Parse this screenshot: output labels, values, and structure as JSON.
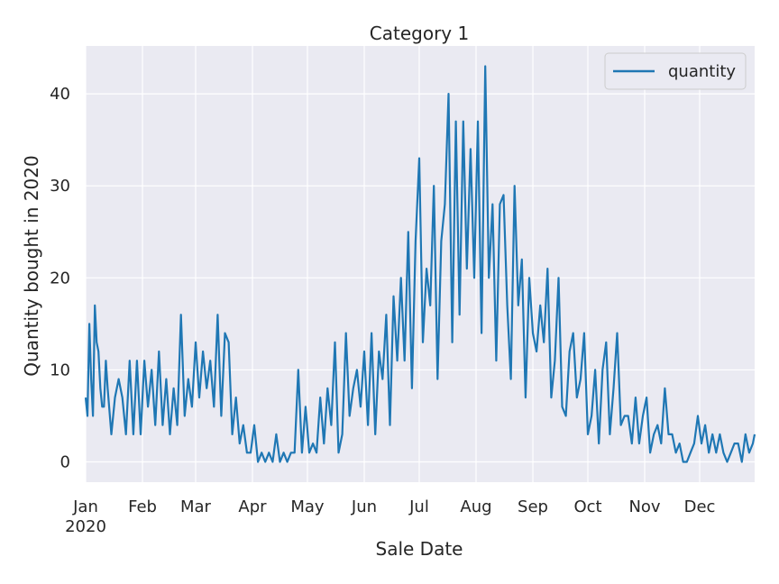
{
  "chart_data": {
    "type": "line",
    "title": "Category 1",
    "xlabel": "Sale Date",
    "ylabel": "Quantity bought in 2020",
    "ylim": [
      -2.2,
      45.2
    ],
    "xlim": [
      "2020-01-01",
      "2020-12-31"
    ],
    "grid": true,
    "legend_position": "top-right",
    "colors": {
      "background": "#eaeaf2",
      "grid": "#ffffff",
      "line": "#1f77b4",
      "text": "#262626"
    },
    "x_ticks": [
      {
        "date": "2020-01-01",
        "label": "Jan",
        "sublabel": "2020"
      },
      {
        "date": "2020-02-01",
        "label": "Feb"
      },
      {
        "date": "2020-03-01",
        "label": "Mar"
      },
      {
        "date": "2020-04-01",
        "label": "Apr"
      },
      {
        "date": "2020-05-01",
        "label": "May"
      },
      {
        "date": "2020-06-01",
        "label": "Jun"
      },
      {
        "date": "2020-07-01",
        "label": "Jul"
      },
      {
        "date": "2020-08-01",
        "label": "Aug"
      },
      {
        "date": "2020-09-01",
        "label": "Sep"
      },
      {
        "date": "2020-10-01",
        "label": "Oct"
      },
      {
        "date": "2020-11-01",
        "label": "Nov"
      },
      {
        "date": "2020-12-01",
        "label": "Dec"
      }
    ],
    "y_ticks": [
      0,
      10,
      20,
      30,
      40
    ],
    "series": [
      {
        "name": "quantity",
        "x": [
          "2020-01-01",
          "2020-01-02",
          "2020-01-03",
          "2020-01-04",
          "2020-01-05",
          "2020-01-06",
          "2020-01-07",
          "2020-01-08",
          "2020-01-09",
          "2020-01-10",
          "2020-01-11",
          "2020-01-12",
          "2020-01-13",
          "2020-01-15",
          "2020-01-17",
          "2020-01-19",
          "2020-01-21",
          "2020-01-23",
          "2020-01-25",
          "2020-01-27",
          "2020-01-29",
          "2020-01-31",
          "2020-02-02",
          "2020-02-04",
          "2020-02-06",
          "2020-02-08",
          "2020-02-10",
          "2020-02-12",
          "2020-02-14",
          "2020-02-16",
          "2020-02-18",
          "2020-02-20",
          "2020-02-22",
          "2020-02-24",
          "2020-02-26",
          "2020-02-28",
          "2020-03-01",
          "2020-03-03",
          "2020-03-05",
          "2020-03-07",
          "2020-03-09",
          "2020-03-11",
          "2020-03-13",
          "2020-03-15",
          "2020-03-17",
          "2020-03-19",
          "2020-03-21",
          "2020-03-23",
          "2020-03-25",
          "2020-03-27",
          "2020-03-29",
          "2020-03-31",
          "2020-04-02",
          "2020-04-04",
          "2020-04-06",
          "2020-04-08",
          "2020-04-10",
          "2020-04-12",
          "2020-04-14",
          "2020-04-16",
          "2020-04-18",
          "2020-04-20",
          "2020-04-22",
          "2020-04-24",
          "2020-04-26",
          "2020-04-28",
          "2020-04-30",
          "2020-05-02",
          "2020-05-04",
          "2020-05-06",
          "2020-05-08",
          "2020-05-10",
          "2020-05-12",
          "2020-05-14",
          "2020-05-16",
          "2020-05-18",
          "2020-05-20",
          "2020-05-22",
          "2020-05-24",
          "2020-05-26",
          "2020-05-28",
          "2020-05-30",
          "2020-06-01",
          "2020-06-03",
          "2020-06-05",
          "2020-06-07",
          "2020-06-09",
          "2020-06-11",
          "2020-06-13",
          "2020-06-15",
          "2020-06-17",
          "2020-06-19",
          "2020-06-21",
          "2020-06-23",
          "2020-06-25",
          "2020-06-27",
          "2020-06-29",
          "2020-07-01",
          "2020-07-03",
          "2020-07-05",
          "2020-07-07",
          "2020-07-09",
          "2020-07-11",
          "2020-07-13",
          "2020-07-15",
          "2020-07-17",
          "2020-07-19",
          "2020-07-21",
          "2020-07-23",
          "2020-07-25",
          "2020-07-27",
          "2020-07-29",
          "2020-07-31",
          "2020-08-02",
          "2020-08-04",
          "2020-08-06",
          "2020-08-08",
          "2020-08-10",
          "2020-08-12",
          "2020-08-14",
          "2020-08-16",
          "2020-08-18",
          "2020-08-20",
          "2020-08-22",
          "2020-08-24",
          "2020-08-26",
          "2020-08-28",
          "2020-08-30",
          "2020-09-01",
          "2020-09-03",
          "2020-09-05",
          "2020-09-07",
          "2020-09-09",
          "2020-09-11",
          "2020-09-13",
          "2020-09-15",
          "2020-09-17",
          "2020-09-19",
          "2020-09-21",
          "2020-09-23",
          "2020-09-25",
          "2020-09-27",
          "2020-09-29",
          "2020-10-01",
          "2020-10-03",
          "2020-10-05",
          "2020-10-07",
          "2020-10-09",
          "2020-10-11",
          "2020-10-13",
          "2020-10-15",
          "2020-10-17",
          "2020-10-19",
          "2020-10-21",
          "2020-10-23",
          "2020-10-25",
          "2020-10-27",
          "2020-10-29",
          "2020-10-31",
          "2020-11-02",
          "2020-11-04",
          "2020-11-06",
          "2020-11-08",
          "2020-11-10",
          "2020-11-12",
          "2020-11-14",
          "2020-11-16",
          "2020-11-18",
          "2020-11-20",
          "2020-11-22",
          "2020-11-24",
          "2020-11-26",
          "2020-11-28",
          "2020-11-30",
          "2020-12-02",
          "2020-12-04",
          "2020-12-06",
          "2020-12-08",
          "2020-12-10",
          "2020-12-12",
          "2020-12-14",
          "2020-12-16",
          "2020-12-18",
          "2020-12-20",
          "2020-12-22",
          "2020-12-24",
          "2020-12-26",
          "2020-12-28",
          "2020-12-30",
          "2020-12-31"
        ],
        "y": [
          7,
          5,
          15,
          9,
          5,
          17,
          13,
          12,
          8,
          6,
          6,
          11,
          8,
          3,
          7,
          9,
          7,
          3,
          11,
          3,
          11,
          3,
          11,
          6,
          10,
          4,
          12,
          4,
          9,
          3,
          8,
          4,
          16,
          5,
          9,
          6,
          13,
          7,
          12,
          8,
          11,
          6,
          16,
          5,
          14,
          13,
          3,
          7,
          2,
          4,
          1,
          1,
          4,
          0,
          1,
          0,
          1,
          0,
          3,
          0,
          1,
          0,
          1,
          1,
          10,
          1,
          6,
          1,
          2,
          1,
          7,
          2,
          8,
          4,
          13,
          1,
          3,
          14,
          5,
          8,
          10,
          6,
          12,
          4,
          14,
          3,
          12,
          9,
          16,
          4,
          18,
          11,
          20,
          11,
          25,
          8,
          24,
          33,
          13,
          21,
          17,
          30,
          9,
          24,
          28,
          40,
          13,
          37,
          16,
          37,
          21,
          34,
          20,
          37,
          14,
          43,
          20,
          28,
          11,
          28,
          29,
          17,
          9,
          30,
          17,
          22,
          7,
          20,
          14,
          12,
          17,
          13,
          21,
          7,
          11,
          20,
          6,
          5,
          12,
          14,
          7,
          9,
          14,
          3,
          5,
          10,
          2,
          10,
          13,
          3,
          8,
          14,
          4,
          5,
          5,
          2,
          7,
          2,
          5,
          7,
          1,
          3,
          4,
          2,
          8,
          3,
          3,
          1,
          2,
          0,
          0,
          1,
          2,
          5,
          2,
          4,
          1,
          3,
          1,
          3,
          1,
          0,
          1,
          2,
          2,
          0,
          3,
          1,
          2,
          3
        ]
      }
    ]
  }
}
